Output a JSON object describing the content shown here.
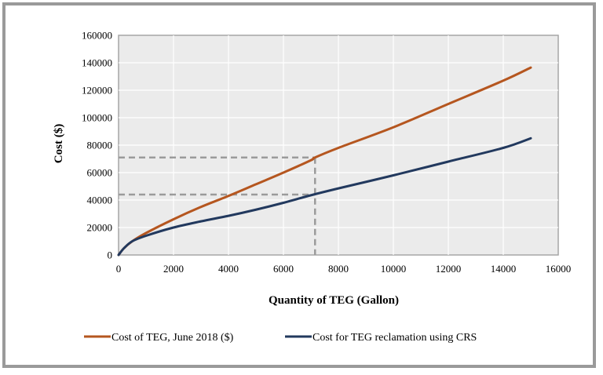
{
  "chart_data": {
    "type": "line",
    "title": "",
    "xlabel": "Quantity of TEG (Gallon)",
    "ylabel": "Cost ($)",
    "xlim": [
      0,
      16000
    ],
    "ylim": [
      0,
      160000
    ],
    "xticks": [
      0,
      2000,
      4000,
      6000,
      8000,
      10000,
      12000,
      14000,
      16000
    ],
    "yticks": [
      0,
      20000,
      40000,
      60000,
      80000,
      100000,
      120000,
      140000,
      160000
    ],
    "xtick_labels": [
      "0",
      "2000",
      "4000",
      "6000",
      "8000",
      "10000",
      "12000",
      "14000",
      "16000"
    ],
    "ytick_labels": [
      "0",
      "20000",
      "40000",
      "60000",
      "80000",
      "100000",
      "120000",
      "140000",
      "160000"
    ],
    "grid": true,
    "legend_position": "bottom",
    "series": [
      {
        "name": "Cost of TEG, June 2018 ($)",
        "color": "#b5561f",
        "x": [
          0,
          200,
          500,
          1000,
          2000,
          3000,
          4000,
          5000,
          6000,
          7000,
          7150,
          8000,
          10000,
          12000,
          14000,
          15000
        ],
        "y": [
          0,
          5000,
          10000,
          16000,
          26000,
          35000,
          43000,
          51500,
          60000,
          69000,
          71000,
          78000,
          93000,
          110000,
          127000,
          136500
        ]
      },
      {
        "name": "Cost for TEG reclamation using CRS",
        "color": "#22395e",
        "x": [
          0,
          200,
          500,
          1000,
          2000,
          3000,
          4000,
          5000,
          6000,
          7000,
          8000,
          10000,
          12000,
          14000,
          15000
        ],
        "y": [
          0,
          5000,
          10000,
          14000,
          20000,
          24500,
          28500,
          33000,
          38000,
          43500,
          48500,
          58000,
          68000,
          78000,
          85000
        ]
      }
    ],
    "reference_lines": [
      {
        "x": 7150,
        "y": 71000
      },
      {
        "x": 7150,
        "y": 44000
      }
    ]
  }
}
